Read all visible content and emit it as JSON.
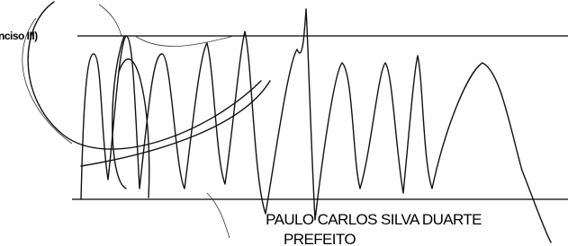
{
  "document": {
    "header_fragment": "nciso III)",
    "signatory": {
      "name": "PAULO CARLOS SILVA DUARTE",
      "title": "PREFEITO"
    }
  }
}
